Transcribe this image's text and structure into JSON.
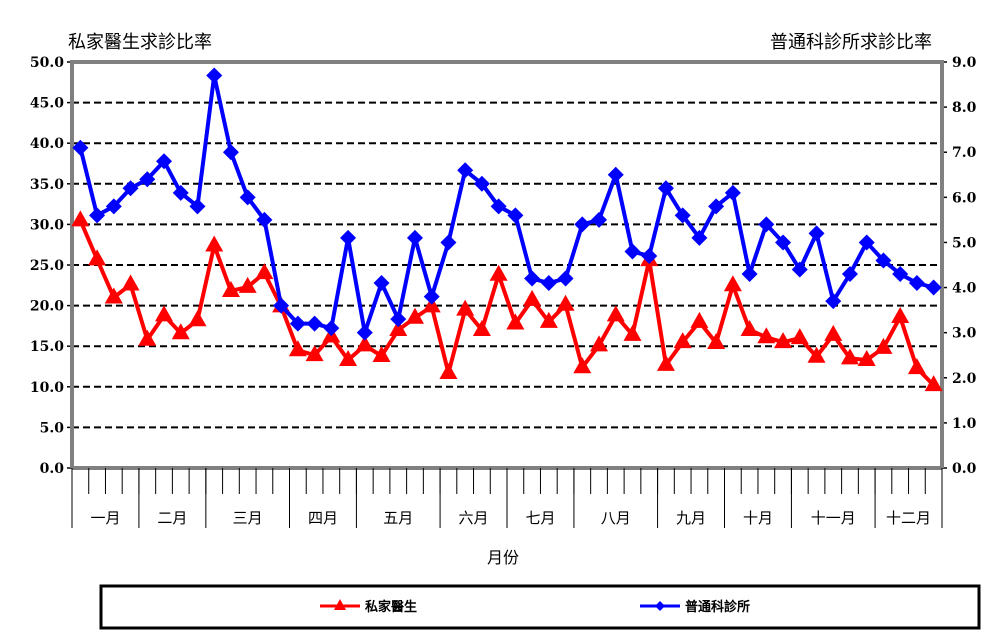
{
  "chart_data": {
    "type": "line",
    "left_axis_title": "私家醫生求診比率",
    "right_axis_title": "普通科診所求診比率",
    "xlabel": "月份",
    "left_ylim": [
      0,
      50
    ],
    "left_ticks": [
      "0.0",
      "5.0",
      "10.0",
      "15.0",
      "20.0",
      "25.0",
      "30.0",
      "35.0",
      "40.0",
      "45.0",
      "50.0"
    ],
    "right_ylim": [
      0,
      9
    ],
    "right_ticks": [
      "0.0",
      "1.0",
      "2.0",
      "3.0",
      "4.0",
      "5.0",
      "6.0",
      "7.0",
      "8.0",
      "9.0"
    ],
    "grid": true,
    "legend_position": "bottom",
    "months": [
      {
        "label": "一月",
        "weeks": 4
      },
      {
        "label": "二月",
        "weeks": 4
      },
      {
        "label": "三月",
        "weeks": 5
      },
      {
        "label": "四月",
        "weeks": 4
      },
      {
        "label": "五月",
        "weeks": 5
      },
      {
        "label": "六月",
        "weeks": 4
      },
      {
        "label": "七月",
        "weeks": 4
      },
      {
        "label": "八月",
        "weeks": 5
      },
      {
        "label": "九月",
        "weeks": 4
      },
      {
        "label": "十月",
        "weeks": 4
      },
      {
        "label": "十一月",
        "weeks": 5
      },
      {
        "label": "十二月",
        "weeks": 4
      }
    ],
    "series": [
      {
        "name": "私家醫生",
        "axis": "left",
        "color": "#ff0000",
        "marker": "triangle",
        "values": [
          30.5,
          25.7,
          21.0,
          22.6,
          15.8,
          18.8,
          16.6,
          18.2,
          27.4,
          21.8,
          22.3,
          24.0,
          19.9,
          14.5,
          13.9,
          16.2,
          13.3,
          15.1,
          13.8,
          17.0,
          18.5,
          19.9,
          11.7,
          19.5,
          17.0,
          23.8,
          17.8,
          20.7,
          18.0,
          20.1,
          12.4,
          15.1,
          18.8,
          16.4,
          25.6,
          12.7,
          15.5,
          18.0,
          15.4,
          22.5,
          17.0,
          16.1,
          15.5,
          16.0,
          13.7,
          16.4,
          13.5,
          13.3,
          14.8,
          18.6,
          12.3,
          10.2
        ]
      },
      {
        "name": "普通科診所",
        "axis": "right",
        "color": "#0000ff",
        "marker": "diamond",
        "values": [
          7.1,
          5.6,
          5.8,
          6.2,
          6.4,
          6.8,
          6.1,
          5.8,
          8.7,
          7.0,
          6.0,
          5.5,
          3.6,
          3.2,
          3.2,
          3.1,
          5.1,
          3.0,
          4.1,
          3.3,
          5.1,
          3.8,
          5.0,
          6.6,
          6.3,
          5.8,
          5.6,
          4.2,
          4.1,
          4.2,
          5.4,
          5.5,
          6.5,
          4.8,
          4.7,
          6.2,
          5.6,
          5.1,
          5.8,
          6.1,
          4.3,
          5.4,
          5.0,
          4.4,
          5.2,
          3.7,
          4.3,
          5.0,
          4.6,
          4.3,
          4.1,
          4.0
        ]
      }
    ]
  }
}
